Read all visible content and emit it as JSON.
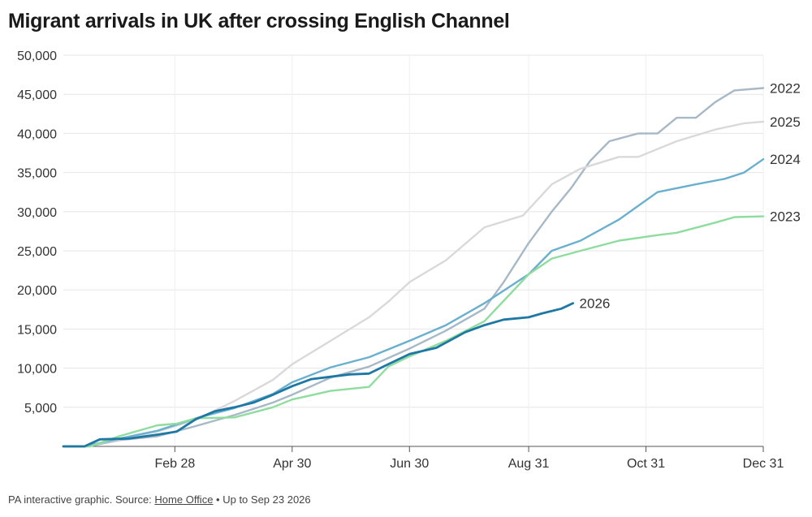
{
  "title": "Migrant arrivals in UK after crossing English Channel",
  "footer": {
    "prefix": "PA interactive graphic. Source: ",
    "link": "Home Office",
    "suffix": " • Up to Sep 23 2026"
  },
  "chart_data": {
    "type": "line",
    "title": "Migrant arrivals in UK after crossing English Channel",
    "xlabel": "",
    "ylabel": "",
    "x_unit": "day of year",
    "xlim": [
      1,
      365
    ],
    "ylim": [
      0,
      50000
    ],
    "y_ticks": [
      5000,
      10000,
      15000,
      20000,
      25000,
      30000,
      35000,
      40000,
      45000,
      50000
    ],
    "y_tick_labels": [
      "5,000",
      "10,000",
      "15,000",
      "20,000",
      "25,000",
      "30,000",
      "35,000",
      "40,000",
      "45,000",
      "50,000"
    ],
    "x_ticks": [
      59,
      120,
      181,
      243,
      304,
      365
    ],
    "x_tick_labels": [
      "Feb 28",
      "Apr 30",
      "Jun 30",
      "Aug 31",
      "Oct 31",
      "Dec 31"
    ],
    "grid": true,
    "legend": "none (series labelled at line ends)",
    "series": [
      {
        "name": "2022",
        "color": "#a7b8c6",
        "x": [
          1,
          14,
          30,
          50,
          70,
          90,
          110,
          120,
          140,
          160,
          181,
          200,
          220,
          230,
          243,
          255,
          265,
          275,
          285,
          300,
          310,
          320,
          330,
          340,
          350,
          365
        ],
        "y": [
          0,
          0,
          800,
          1300,
          2600,
          4000,
          5600,
          6600,
          8800,
          10200,
          12500,
          14800,
          17600,
          21000,
          26000,
          30000,
          33000,
          36500,
          39000,
          40000,
          40000,
          42000,
          42000,
          44000,
          45500,
          45800
        ]
      },
      {
        "name": "2025",
        "color": "#d9d9d9",
        "x": [
          1,
          12,
          30,
          50,
          70,
          90,
          110,
          120,
          140,
          160,
          170,
          181,
          200,
          220,
          240,
          255,
          270,
          290,
          300,
          320,
          340,
          355,
          365
        ],
        "y": [
          0,
          0,
          900,
          1900,
          3400,
          5800,
          8500,
          10500,
          13500,
          16500,
          18500,
          21000,
          23800,
          28000,
          29500,
          33500,
          35500,
          37000,
          37000,
          39000,
          40500,
          41300,
          41500
        ]
      },
      {
        "name": "2024",
        "color": "#6ab0ce",
        "x": [
          1,
          12,
          30,
          50,
          70,
          90,
          110,
          120,
          140,
          160,
          181,
          200,
          220,
          243,
          255,
          270,
          290,
          310,
          330,
          345,
          355,
          365
        ],
        "y": [
          0,
          0,
          1000,
          2000,
          3600,
          4900,
          6700,
          8200,
          10100,
          11400,
          13500,
          15500,
          18300,
          22000,
          25000,
          26300,
          29000,
          32500,
          33500,
          34200,
          35000,
          36700
        ]
      },
      {
        "name": "2023",
        "color": "#8fdc9f",
        "x": [
          1,
          15,
          30,
          50,
          60,
          70,
          90,
          110,
          120,
          140,
          160,
          170,
          181,
          200,
          220,
          243,
          255,
          270,
          290,
          310,
          320,
          340,
          350,
          365
        ],
        "y": [
          0,
          0,
          1300,
          2700,
          2900,
          3600,
          3700,
          5000,
          6000,
          7100,
          7600,
          10200,
          11500,
          13500,
          16000,
          22000,
          24000,
          25000,
          26300,
          27000,
          27300,
          28600,
          29300,
          29400
        ]
      },
      {
        "name": "2026",
        "color": "#1f77a4",
        "x": [
          1,
          12,
          20,
          35,
          50,
          60,
          70,
          80,
          90,
          100,
          110,
          120,
          130,
          140,
          150,
          160,
          170,
          181,
          195,
          210,
          220,
          230,
          243,
          250,
          260,
          266
        ],
        "y": [
          0,
          0,
          900,
          1000,
          1500,
          1900,
          3500,
          4500,
          5000,
          5600,
          6600,
          7700,
          8600,
          8900,
          9200,
          9300,
          10500,
          11800,
          12600,
          14600,
          15500,
          16200,
          16500,
          17000,
          17600,
          18300
        ]
      }
    ]
  }
}
